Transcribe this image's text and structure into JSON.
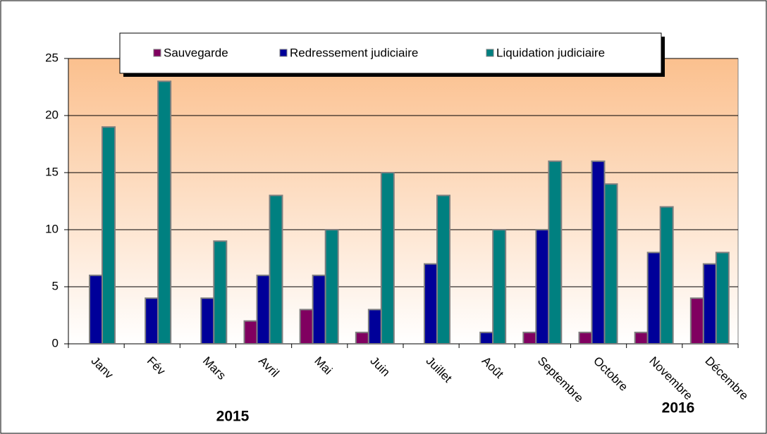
{
  "chart_data": {
    "type": "bar",
    "categories": [
      "Janv",
      "Fév",
      "Mars",
      "Avril",
      "Mai",
      "Juin",
      "Juillet",
      "Août",
      "Septembre",
      "Octobre",
      "Novembre",
      "Décembre"
    ],
    "series": [
      {
        "name": "Sauvegarde",
        "color": "#800060",
        "values": [
          0,
          0,
          0,
          2,
          3,
          1,
          0,
          0,
          1,
          1,
          1,
          4
        ]
      },
      {
        "name": "Redressement judiciaire",
        "color": "#000099",
        "values": [
          6,
          4,
          4,
          6,
          6,
          3,
          7,
          1,
          10,
          16,
          8,
          7
        ]
      },
      {
        "name": "Liquidation judiciaire",
        "color": "#008080",
        "values": [
          19,
          23,
          9,
          13,
          10,
          15,
          13,
          10,
          16,
          14,
          12,
          8
        ]
      }
    ],
    "annotations": [
      "2015",
      "2016"
    ],
    "ylim": [
      0,
      25
    ],
    "yticks": [
      0,
      5,
      10,
      15,
      20,
      25
    ],
    "grid": true,
    "legend": "top"
  }
}
